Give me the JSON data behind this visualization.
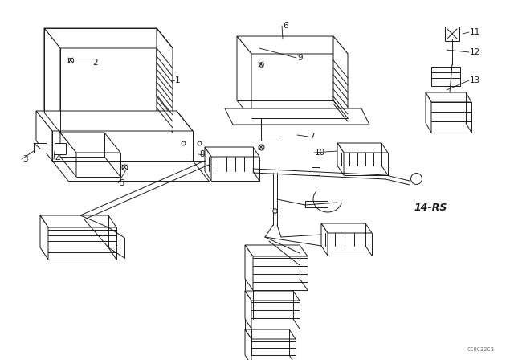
{
  "bg_color": "#ffffff",
  "line_color": "#1a1a1a",
  "fig_width": 6.4,
  "fig_height": 4.48,
  "dpi": 100,
  "watermark": "CC0C32C3",
  "ref_label": "14-RS"
}
